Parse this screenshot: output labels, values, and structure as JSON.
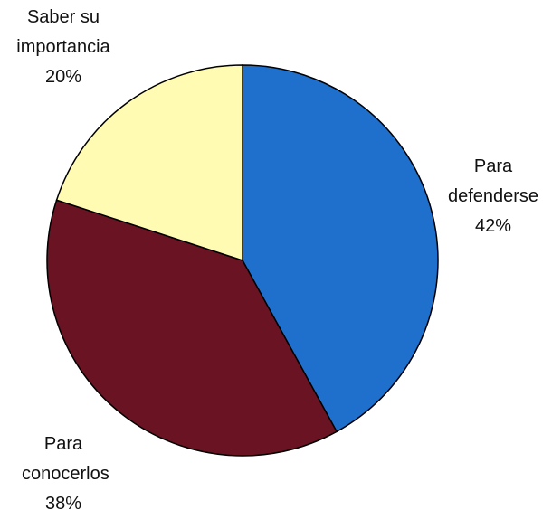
{
  "chart_data": {
    "type": "pie",
    "categories": [
      "Para defenderse",
      "Para conocerlos",
      "Saber su importancia"
    ],
    "values": [
      42,
      38,
      20
    ],
    "value_labels": [
      "42%",
      "38%",
      "20%"
    ],
    "colors": [
      "#1f6fcc",
      "#6a1322",
      "#fffbb3"
    ]
  }
}
